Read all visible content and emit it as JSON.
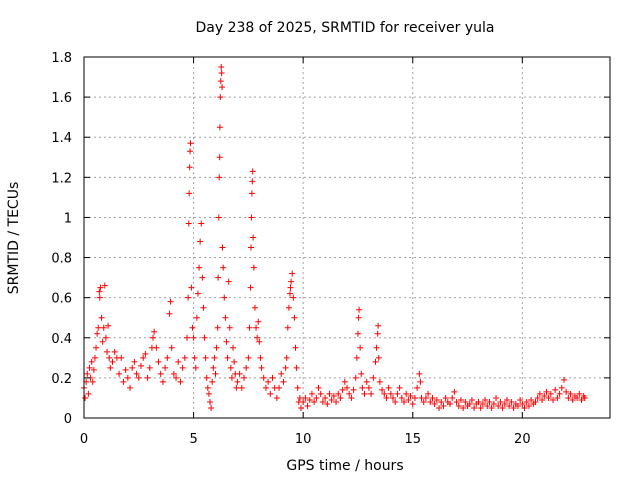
{
  "chart_data": {
    "type": "scatter",
    "title": "Day 238 of 2025, SRMTID for receiver yula",
    "xlabel": "GPS time / hours",
    "ylabel": "SRMTID / TECUs",
    "xlim": [
      0,
      24
    ],
    "ylim": [
      0,
      1.8
    ],
    "xticks": [
      "0",
      "5",
      "10",
      "15",
      "20"
    ],
    "yticks": [
      "0",
      "0.2",
      "0.4",
      "0.6",
      "0.8",
      "1",
      "1.2",
      "1.4",
      "1.6",
      "1.8"
    ],
    "grid": true,
    "marker": "+",
    "series": [
      {
        "name": "SRMTID",
        "color": "#ff0000",
        "points": [
          [
            0.0,
            0.15
          ],
          [
            0.05,
            0.1
          ],
          [
            0.1,
            0.18
          ],
          [
            0.15,
            0.22
          ],
          [
            0.2,
            0.12
          ],
          [
            0.25,
            0.25
          ],
          [
            0.3,
            0.2
          ],
          [
            0.35,
            0.28
          ],
          [
            0.4,
            0.18
          ],
          [
            0.45,
            0.24
          ],
          [
            0.5,
            0.3
          ],
          [
            0.55,
            0.35
          ],
          [
            0.6,
            0.42
          ],
          [
            0.65,
            0.45
          ],
          [
            0.7,
            0.63
          ],
          [
            0.72,
            0.6
          ],
          [
            0.75,
            0.65
          ],
          [
            0.8,
            0.5
          ],
          [
            0.85,
            0.38
          ],
          [
            0.9,
            0.45
          ],
          [
            0.95,
            0.66
          ],
          [
            1.0,
            0.4
          ],
          [
            1.05,
            0.33
          ],
          [
            1.1,
            0.46
          ],
          [
            1.15,
            0.3
          ],
          [
            1.2,
            0.25
          ],
          [
            1.3,
            0.28
          ],
          [
            1.4,
            0.33
          ],
          [
            1.5,
            0.3
          ],
          [
            1.6,
            0.22
          ],
          [
            1.7,
            0.3
          ],
          [
            1.8,
            0.18
          ],
          [
            1.9,
            0.24
          ],
          [
            2.0,
            0.2
          ],
          [
            2.1,
            0.15
          ],
          [
            2.2,
            0.25
          ],
          [
            2.3,
            0.28
          ],
          [
            2.4,
            0.22
          ],
          [
            2.5,
            0.2
          ],
          [
            2.6,
            0.26
          ],
          [
            2.7,
            0.3
          ],
          [
            2.8,
            0.32
          ],
          [
            2.9,
            0.2
          ],
          [
            3.0,
            0.25
          ],
          [
            3.1,
            0.35
          ],
          [
            3.15,
            0.4
          ],
          [
            3.2,
            0.43
          ],
          [
            3.3,
            0.35
          ],
          [
            3.4,
            0.28
          ],
          [
            3.5,
            0.22
          ],
          [
            3.6,
            0.18
          ],
          [
            3.7,
            0.25
          ],
          [
            3.8,
            0.3
          ],
          [
            3.9,
            0.52
          ],
          [
            3.95,
            0.58
          ],
          [
            4.0,
            0.35
          ],
          [
            4.1,
            0.22
          ],
          [
            4.2,
            0.2
          ],
          [
            4.3,
            0.28
          ],
          [
            4.4,
            0.18
          ],
          [
            4.5,
            0.25
          ],
          [
            4.6,
            0.3
          ],
          [
            4.7,
            0.4
          ],
          [
            4.75,
            0.6
          ],
          [
            4.78,
            0.97
          ],
          [
            4.8,
            1.12
          ],
          [
            4.82,
            1.25
          ],
          [
            4.84,
            1.33
          ],
          [
            4.86,
            1.37
          ],
          [
            4.9,
            0.65
          ],
          [
            4.95,
            0.45
          ],
          [
            5.0,
            0.4
          ],
          [
            5.05,
            0.3
          ],
          [
            5.1,
            0.25
          ],
          [
            5.15,
            0.5
          ],
          [
            5.2,
            0.62
          ],
          [
            5.25,
            0.75
          ],
          [
            5.3,
            0.88
          ],
          [
            5.35,
            0.97
          ],
          [
            5.4,
            0.7
          ],
          [
            5.45,
            0.55
          ],
          [
            5.5,
            0.4
          ],
          [
            5.55,
            0.3
          ],
          [
            5.6,
            0.2
          ],
          [
            5.65,
            0.15
          ],
          [
            5.7,
            0.12
          ],
          [
            5.75,
            0.08
          ],
          [
            5.8,
            0.05
          ],
          [
            5.85,
            0.18
          ],
          [
            5.9,
            0.25
          ],
          [
            5.95,
            0.3
          ],
          [
            6.0,
            0.22
          ],
          [
            6.05,
            0.35
          ],
          [
            6.1,
            0.45
          ],
          [
            6.12,
            0.7
          ],
          [
            6.15,
            1.0
          ],
          [
            6.17,
            1.2
          ],
          [
            6.19,
            1.3
          ],
          [
            6.2,
            1.45
          ],
          [
            6.22,
            1.6
          ],
          [
            6.24,
            1.68
          ],
          [
            6.26,
            1.75
          ],
          [
            6.28,
            1.72
          ],
          [
            6.3,
            1.65
          ],
          [
            6.32,
            0.85
          ],
          [
            6.35,
            0.75
          ],
          [
            6.4,
            0.6
          ],
          [
            6.45,
            0.5
          ],
          [
            6.5,
            0.38
          ],
          [
            6.55,
            0.3
          ],
          [
            6.6,
            0.68
          ],
          [
            6.65,
            0.45
          ],
          [
            6.7,
            0.25
          ],
          [
            6.75,
            0.2
          ],
          [
            6.8,
            0.35
          ],
          [
            6.85,
            0.28
          ],
          [
            6.9,
            0.22
          ],
          [
            6.95,
            0.15
          ],
          [
            7.0,
            0.18
          ],
          [
            7.1,
            0.22
          ],
          [
            7.2,
            0.15
          ],
          [
            7.3,
            0.2
          ],
          [
            7.4,
            0.25
          ],
          [
            7.5,
            0.3
          ],
          [
            7.55,
            0.45
          ],
          [
            7.6,
            0.65
          ],
          [
            7.62,
            0.85
          ],
          [
            7.64,
            1.0
          ],
          [
            7.66,
            1.12
          ],
          [
            7.68,
            1.18
          ],
          [
            7.7,
            1.23
          ],
          [
            7.72,
            0.9
          ],
          [
            7.75,
            0.75
          ],
          [
            7.8,
            0.55
          ],
          [
            7.85,
            0.45
          ],
          [
            7.9,
            0.4
          ],
          [
            7.95,
            0.48
          ],
          [
            8.0,
            0.38
          ],
          [
            8.05,
            0.3
          ],
          [
            8.1,
            0.25
          ],
          [
            8.2,
            0.2
          ],
          [
            8.3,
            0.15
          ],
          [
            8.4,
            0.18
          ],
          [
            8.5,
            0.12
          ],
          [
            8.6,
            0.2
          ],
          [
            8.7,
            0.15
          ],
          [
            8.8,
            0.1
          ],
          [
            8.9,
            0.15
          ],
          [
            9.0,
            0.22
          ],
          [
            9.1,
            0.18
          ],
          [
            9.2,
            0.25
          ],
          [
            9.25,
            0.3
          ],
          [
            9.3,
            0.45
          ],
          [
            9.35,
            0.55
          ],
          [
            9.4,
            0.62
          ],
          [
            9.42,
            0.65
          ],
          [
            9.45,
            0.68
          ],
          [
            9.5,
            0.72
          ],
          [
            9.55,
            0.6
          ],
          [
            9.6,
            0.5
          ],
          [
            9.65,
            0.35
          ],
          [
            9.7,
            0.25
          ],
          [
            9.75,
            0.15
          ],
          [
            9.8,
            0.08
          ],
          [
            9.85,
            0.1
          ],
          [
            9.9,
            0.05
          ],
          [
            10.0,
            0.08
          ],
          [
            10.1,
            0.1
          ],
          [
            10.2,
            0.06
          ],
          [
            10.3,
            0.09
          ],
          [
            10.4,
            0.12
          ],
          [
            10.5,
            0.08
          ],
          [
            10.6,
            0.1
          ],
          [
            10.7,
            0.15
          ],
          [
            10.8,
            0.12
          ],
          [
            10.9,
            0.08
          ],
          [
            11.0,
            0.1
          ],
          [
            11.1,
            0.07
          ],
          [
            11.2,
            0.12
          ],
          [
            11.3,
            0.09
          ],
          [
            11.4,
            0.11
          ],
          [
            11.5,
            0.08
          ],
          [
            11.6,
            0.12
          ],
          [
            11.7,
            0.1
          ],
          [
            11.8,
            0.14
          ],
          [
            11.9,
            0.18
          ],
          [
            12.0,
            0.15
          ],
          [
            12.1,
            0.12
          ],
          [
            12.2,
            0.1
          ],
          [
            12.3,
            0.14
          ],
          [
            12.4,
            0.2
          ],
          [
            12.45,
            0.3
          ],
          [
            12.5,
            0.42
          ],
          [
            12.53,
            0.5
          ],
          [
            12.55,
            0.54
          ],
          [
            12.6,
            0.35
          ],
          [
            12.65,
            0.22
          ],
          [
            12.7,
            0.15
          ],
          [
            12.8,
            0.12
          ],
          [
            12.9,
            0.18
          ],
          [
            13.0,
            0.15
          ],
          [
            13.1,
            0.12
          ],
          [
            13.2,
            0.2
          ],
          [
            13.3,
            0.28
          ],
          [
            13.35,
            0.35
          ],
          [
            13.4,
            0.42
          ],
          [
            13.42,
            0.46
          ],
          [
            13.45,
            0.3
          ],
          [
            13.5,
            0.18
          ],
          [
            13.6,
            0.14
          ],
          [
            13.7,
            0.12
          ],
          [
            13.8,
            0.1
          ],
          [
            13.9,
            0.15
          ],
          [
            14.0,
            0.12
          ],
          [
            14.1,
            0.1
          ],
          [
            14.2,
            0.08
          ],
          [
            14.3,
            0.12
          ],
          [
            14.4,
            0.15
          ],
          [
            14.5,
            0.1
          ],
          [
            14.6,
            0.08
          ],
          [
            14.7,
            0.12
          ],
          [
            14.8,
            0.09
          ],
          [
            14.9,
            0.11
          ],
          [
            15.0,
            0.07
          ],
          [
            15.1,
            0.1
          ],
          [
            15.2,
            0.15
          ],
          [
            15.3,
            0.22
          ],
          [
            15.35,
            0.18
          ],
          [
            15.4,
            0.1
          ],
          [
            15.5,
            0.08
          ],
          [
            15.6,
            0.1
          ],
          [
            15.7,
            0.12
          ],
          [
            15.8,
            0.08
          ],
          [
            15.9,
            0.1
          ],
          [
            16.0,
            0.07
          ],
          [
            16.1,
            0.09
          ],
          [
            16.2,
            0.05
          ],
          [
            16.3,
            0.08
          ],
          [
            16.4,
            0.06
          ],
          [
            16.5,
            0.1
          ],
          [
            16.6,
            0.08
          ],
          [
            16.7,
            0.07
          ],
          [
            16.8,
            0.1
          ],
          [
            16.9,
            0.13
          ],
          [
            17.0,
            0.08
          ],
          [
            17.1,
            0.06
          ],
          [
            17.2,
            0.09
          ],
          [
            17.3,
            0.05
          ],
          [
            17.4,
            0.08
          ],
          [
            17.5,
            0.06
          ],
          [
            17.6,
            0.07
          ],
          [
            17.7,
            0.09
          ],
          [
            17.8,
            0.05
          ],
          [
            17.9,
            0.07
          ],
          [
            18.0,
            0.08
          ],
          [
            18.1,
            0.05
          ],
          [
            18.2,
            0.07
          ],
          [
            18.3,
            0.09
          ],
          [
            18.4,
            0.06
          ],
          [
            18.5,
            0.08
          ],
          [
            18.6,
            0.05
          ],
          [
            18.7,
            0.07
          ],
          [
            18.8,
            0.1
          ],
          [
            18.9,
            0.06
          ],
          [
            19.0,
            0.08
          ],
          [
            19.1,
            0.05
          ],
          [
            19.2,
            0.07
          ],
          [
            19.3,
            0.09
          ],
          [
            19.4,
            0.06
          ],
          [
            19.5,
            0.08
          ],
          [
            19.6,
            0.05
          ],
          [
            19.7,
            0.07
          ],
          [
            19.8,
            0.06
          ],
          [
            19.9,
            0.09
          ],
          [
            20.0,
            0.07
          ],
          [
            20.1,
            0.05
          ],
          [
            20.2,
            0.08
          ],
          [
            20.3,
            0.06
          ],
          [
            20.4,
            0.09
          ],
          [
            20.5,
            0.07
          ],
          [
            20.6,
            0.08
          ],
          [
            20.7,
            0.1
          ],
          [
            20.8,
            0.12
          ],
          [
            20.9,
            0.09
          ],
          [
            21.0,
            0.11
          ],
          [
            21.1,
            0.13
          ],
          [
            21.2,
            0.1
          ],
          [
            21.3,
            0.12
          ],
          [
            21.4,
            0.09
          ],
          [
            21.5,
            0.14
          ],
          [
            21.6,
            0.1
          ],
          [
            21.7,
            0.12
          ],
          [
            21.8,
            0.15
          ],
          [
            21.9,
            0.19
          ],
          [
            22.0,
            0.13
          ],
          [
            22.1,
            0.1
          ],
          [
            22.2,
            0.12
          ],
          [
            22.3,
            0.09
          ],
          [
            22.4,
            0.11
          ],
          [
            22.5,
            0.1
          ],
          [
            22.6,
            0.12
          ],
          [
            22.7,
            0.09
          ],
          [
            22.8,
            0.11
          ],
          [
            22.85,
            0.1
          ]
        ]
      }
    ]
  }
}
